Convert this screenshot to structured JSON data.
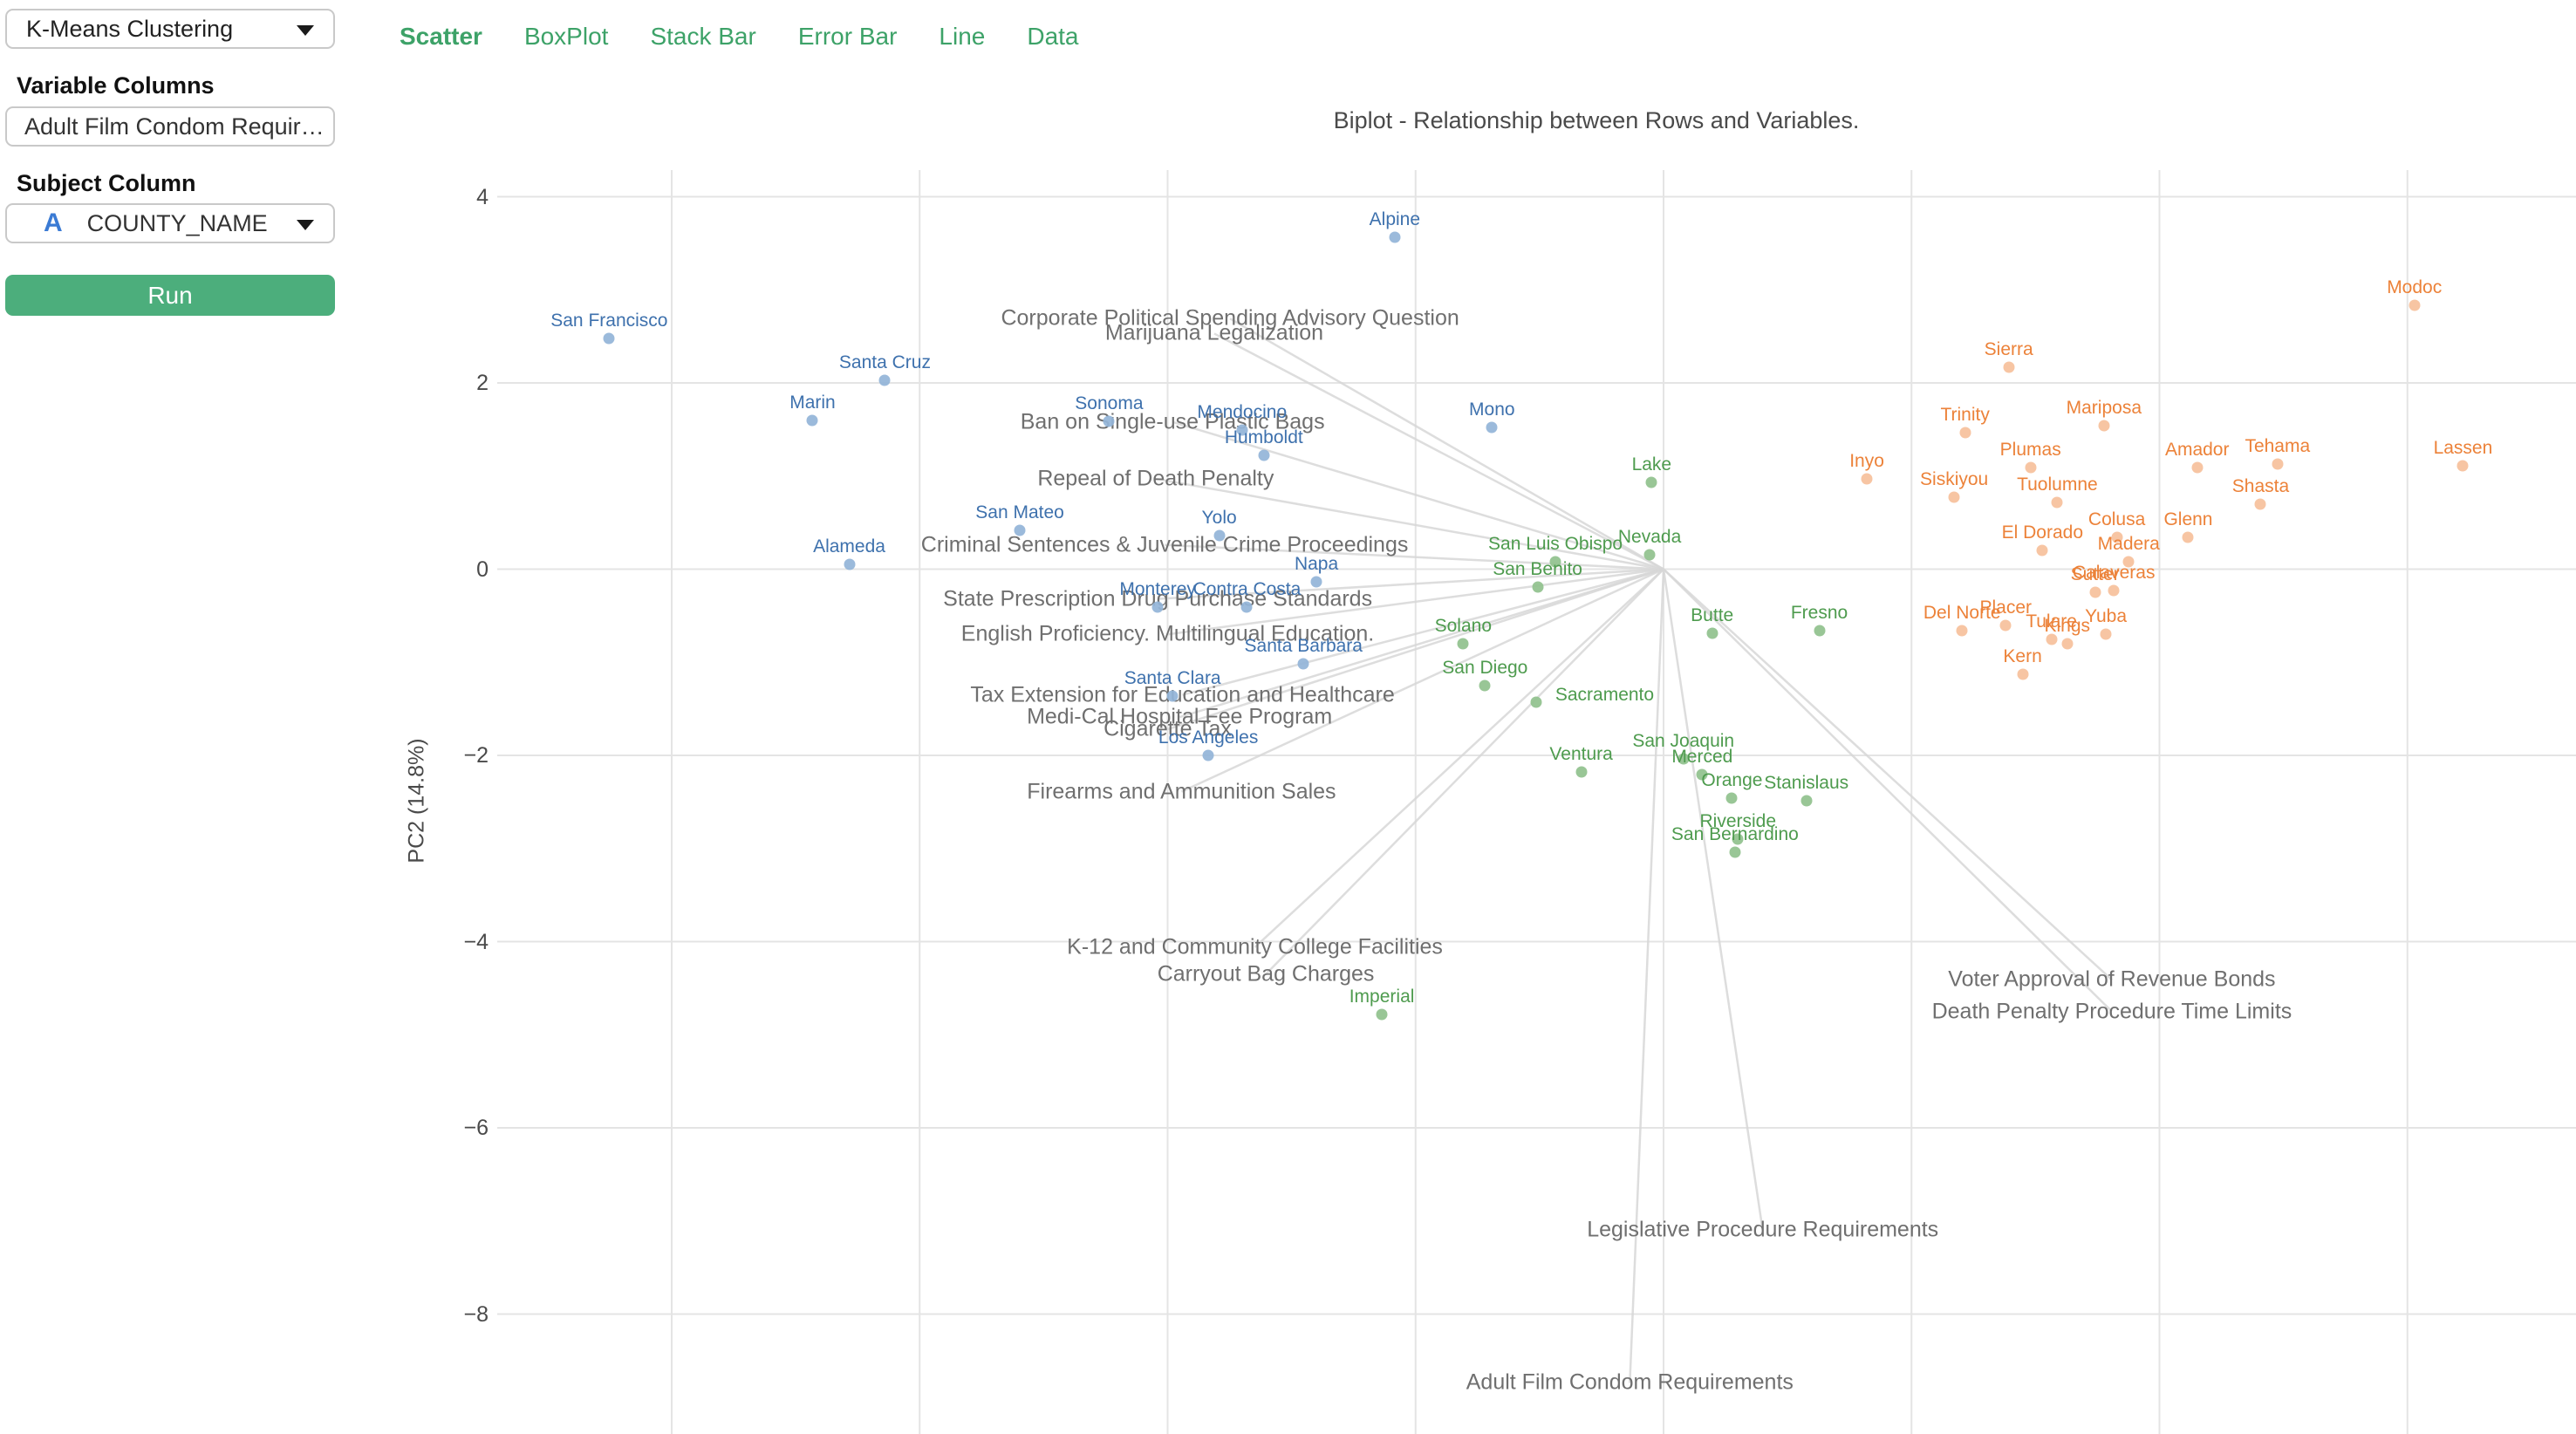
{
  "sidebar": {
    "algorithm_select": {
      "value": "K-Means Clustering"
    },
    "variable_columns": {
      "label": "Variable Columns",
      "value": "Adult Film Condom Requir…"
    },
    "subject_column": {
      "label": "Subject Column",
      "icon": "A",
      "value": "COUNTY_NAME"
    },
    "run_label": "Run"
  },
  "tabs": [
    {
      "label": "Scatter",
      "active": true
    },
    {
      "label": "BoxPlot",
      "active": false
    },
    {
      "label": "Stack Bar",
      "active": false
    },
    {
      "label": "Error Bar",
      "active": false
    },
    {
      "label": "Line",
      "active": false
    },
    {
      "label": "Data",
      "active": false
    }
  ],
  "chart_data": {
    "type": "scatter",
    "title": "Biplot - Relationship between Rows and Variables.",
    "xlabel": "",
    "ylabel": "PC2 (14.8%)",
    "y_ticks": [
      4,
      2,
      0,
      -2,
      -4,
      -6,
      -8
    ],
    "x_gridlines_units": [
      -10,
      -7.5,
      -5,
      -2.5,
      0,
      2.5,
      5,
      7.5
    ],
    "grid": true,
    "legend": "none",
    "cluster_colors": {
      "blue": {
        "dot": "#93b4d8",
        "label": "#3e71ad"
      },
      "green": {
        "dot": "#90c18d",
        "label": "#4e9b4e"
      },
      "orange": {
        "dot": "#f6c09b",
        "label": "#ec8239"
      }
    },
    "points": [
      {
        "name": "Alpine",
        "x": -2.71,
        "y": 3.56,
        "cluster": "blue"
      },
      {
        "name": "San Francisco",
        "x": -10.63,
        "y": 2.48,
        "cluster": "blue"
      },
      {
        "name": "Santa Cruz",
        "x": -7.85,
        "y": 2.03,
        "cluster": "blue"
      },
      {
        "name": "Marin",
        "x": -8.58,
        "y": 1.6,
        "cluster": "blue"
      },
      {
        "name": "Sonoma",
        "x": -5.59,
        "y": 1.59,
        "cluster": "blue"
      },
      {
        "name": "Mendocino",
        "x": -4.25,
        "y": 1.49,
        "cluster": "blue"
      },
      {
        "name": "Mono",
        "x": -1.73,
        "y": 1.52,
        "cluster": "blue"
      },
      {
        "name": "Humboldt",
        "x": -4.03,
        "y": 1.22,
        "cluster": "blue"
      },
      {
        "name": "San Mateo",
        "x": -6.49,
        "y": 0.42,
        "cluster": "blue"
      },
      {
        "name": "Yolo",
        "x": -4.48,
        "y": 0.36,
        "cluster": "blue"
      },
      {
        "name": "Alameda",
        "x": -8.21,
        "y": 0.05,
        "cluster": "blue"
      },
      {
        "name": "Napa",
        "x": -3.5,
        "y": -0.14,
        "cluster": "blue"
      },
      {
        "name": "Monterey",
        "x": -5.1,
        "y": -0.41,
        "cluster": "blue"
      },
      {
        "name": "Contra Costa",
        "x": -4.2,
        "y": -0.41,
        "cluster": "blue"
      },
      {
        "name": "Santa Barbara",
        "x": -3.63,
        "y": -1.02,
        "cluster": "blue"
      },
      {
        "name": "Santa Clara",
        "x": -4.95,
        "y": -1.36,
        "cluster": "blue"
      },
      {
        "name": "Los Angeles",
        "x": -4.59,
        "y": -2.0,
        "cluster": "blue"
      },
      {
        "name": "Lake",
        "x": -0.12,
        "y": 0.93,
        "cluster": "green"
      },
      {
        "name": "Nevada",
        "x": -0.14,
        "y": 0.15,
        "cluster": "green"
      },
      {
        "name": "San Luis Obispo",
        "x": -1.09,
        "y": 0.08,
        "cluster": "green"
      },
      {
        "name": "San Benito",
        "x": -1.27,
        "y": -0.19,
        "cluster": "green"
      },
      {
        "name": "Solano",
        "x": -2.02,
        "y": -0.8,
        "cluster": "green"
      },
      {
        "name": "San Diego",
        "x": -1.8,
        "y": -1.25,
        "cluster": "green"
      },
      {
        "name": "Sacramento",
        "x": -1.28,
        "y": -1.43,
        "cluster": "green",
        "lx": 78,
        "ly": 12
      },
      {
        "name": "Butte",
        "x": 0.49,
        "y": -0.69,
        "cluster": "green"
      },
      {
        "name": "Fresno",
        "x": 1.57,
        "y": -0.66,
        "cluster": "green"
      },
      {
        "name": "Ventura",
        "x": -0.83,
        "y": -2.18,
        "cluster": "green"
      },
      {
        "name": "San Joaquin",
        "x": 0.2,
        "y": -2.04,
        "cluster": "green"
      },
      {
        "name": "Merced",
        "x": 0.39,
        "y": -2.21,
        "cluster": "green"
      },
      {
        "name": "Orange",
        "x": 0.69,
        "y": -2.46,
        "cluster": "green"
      },
      {
        "name": "Stanislaus",
        "x": 1.44,
        "y": -2.49,
        "cluster": "green"
      },
      {
        "name": "Riverside",
        "x": 0.75,
        "y": -2.9,
        "cluster": "green"
      },
      {
        "name": "San Bernardino",
        "x": 0.72,
        "y": -3.04,
        "cluster": "green"
      },
      {
        "name": "Imperial",
        "x": -2.84,
        "y": -4.78,
        "cluster": "green"
      },
      {
        "name": "Modoc",
        "x": 7.57,
        "y": 2.83,
        "cluster": "orange"
      },
      {
        "name": "Sierra",
        "x": 3.48,
        "y": 2.17,
        "cluster": "orange"
      },
      {
        "name": "Trinity",
        "x": 3.04,
        "y": 1.47,
        "cluster": "orange"
      },
      {
        "name": "Mariposa",
        "x": 4.44,
        "y": 1.54,
        "cluster": "orange"
      },
      {
        "name": "Inyo",
        "x": 2.05,
        "y": 0.97,
        "cluster": "orange"
      },
      {
        "name": "Plumas",
        "x": 3.7,
        "y": 1.09,
        "cluster": "orange"
      },
      {
        "name": "Amador",
        "x": 5.38,
        "y": 1.09,
        "cluster": "orange"
      },
      {
        "name": "Tehama",
        "x": 6.19,
        "y": 1.13,
        "cluster": "orange"
      },
      {
        "name": "Lassen",
        "x": 8.06,
        "y": 1.11,
        "cluster": "orange"
      },
      {
        "name": "Siskiyou",
        "x": 2.93,
        "y": 0.77,
        "cluster": "orange"
      },
      {
        "name": "Tuolumne",
        "x": 3.97,
        "y": 0.72,
        "cluster": "orange"
      },
      {
        "name": "Shasta",
        "x": 6.02,
        "y": 0.7,
        "cluster": "orange"
      },
      {
        "name": "El Dorado",
        "x": 3.82,
        "y": 0.2,
        "cluster": "orange"
      },
      {
        "name": "Colusa",
        "x": 4.57,
        "y": 0.34,
        "cluster": "orange"
      },
      {
        "name": "Glenn",
        "x": 5.29,
        "y": 0.34,
        "cluster": "orange"
      },
      {
        "name": "Madera",
        "x": 4.69,
        "y": 0.08,
        "cluster": "orange"
      },
      {
        "name": "Sutter",
        "x": 4.35,
        "y": -0.25,
        "cluster": "orange"
      },
      {
        "name": "Calaveras",
        "x": 4.54,
        "y": -0.23,
        "cluster": "orange"
      },
      {
        "name": "Del Norte",
        "x": 3.01,
        "y": -0.66,
        "cluster": "orange"
      },
      {
        "name": "Placer",
        "x": 3.45,
        "y": -0.6,
        "cluster": "orange"
      },
      {
        "name": "Tulare",
        "x": 3.91,
        "y": -0.75,
        "cluster": "orange"
      },
      {
        "name": "Kings",
        "x": 4.07,
        "y": -0.8,
        "cluster": "orange"
      },
      {
        "name": "Yuba",
        "x": 4.46,
        "y": -0.7,
        "cluster": "orange"
      },
      {
        "name": "Kern",
        "x": 3.62,
        "y": -1.13,
        "cluster": "orange"
      }
    ],
    "variables": [
      {
        "label": "Corporate Political Spending Advisory Question",
        "x": -4.37,
        "y": 2.69
      },
      {
        "label": "Marijuana Legalization",
        "x": -4.53,
        "y": 2.53
      },
      {
        "label": "Ban on Single-use Plastic Bags",
        "x": -4.95,
        "y": 1.58
      },
      {
        "label": "Repeal of Death Penalty",
        "x": -5.12,
        "y": 0.97
      },
      {
        "label": "Criminal Sentences & Juvenile Crime Proceedings",
        "x": -5.03,
        "y": 0.26
      },
      {
        "label": "State Prescription Drug Purchase Standards",
        "x": -5.1,
        "y": -0.32
      },
      {
        "label": "English Proficiency. Multilingual Education.",
        "x": -5.0,
        "y": -0.7
      },
      {
        "label": "Tax Extension for Education and Healthcare",
        "x": -4.85,
        "y": -1.35
      },
      {
        "label": "Medi-Cal Hospital Fee Program",
        "x": -4.88,
        "y": -1.59
      },
      {
        "label": "Cigarette Tax",
        "x": -5.0,
        "y": -1.72
      },
      {
        "label": "Firearms and Ammunition Sales",
        "x": -4.86,
        "y": -2.39
      },
      {
        "label": "K-12 and Community College Facilities",
        "x": -4.12,
        "y": -4.06
      },
      {
        "label": "Carryout Bag Charges",
        "x": -4.01,
        "y": -4.35
      },
      {
        "label": "Voter Approval of Revenue Bonds",
        "x": 4.52,
        "y": -4.41
      },
      {
        "label": "Death Penalty Procedure Time Limits",
        "x": 4.52,
        "y": -4.75
      },
      {
        "label": "Legislative Procedure Requirements",
        "x": 1.0,
        "y": -7.1
      },
      {
        "label": "Adult Film Condom Requirements",
        "x": -0.34,
        "y": -8.74
      }
    ]
  }
}
